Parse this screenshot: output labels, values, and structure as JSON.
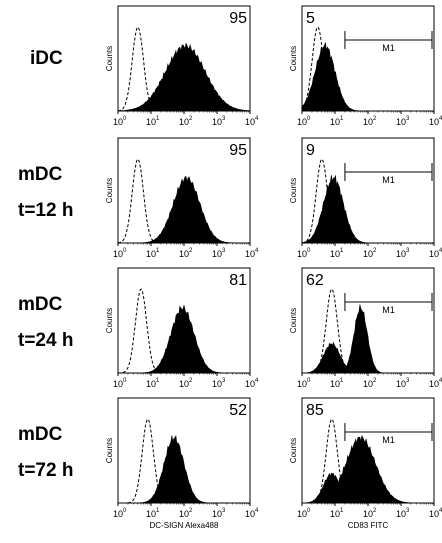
{
  "rows": [
    {
      "label": "iDC",
      "label2": ""
    },
    {
      "label": "mDC",
      "label2": "t=12 h"
    },
    {
      "label": "mDC",
      "label2": "t=24 h"
    },
    {
      "label": "mDC",
      "label2": "t=72 h"
    }
  ],
  "chart_data": {
    "type": "histogram",
    "x_scale": "log",
    "x_range": [
      1,
      10000
    ],
    "x_ticks": [
      "10",
      "10",
      "10",
      "10",
      "10"
    ],
    "x_tick_exponents": [
      "0",
      "1",
      "2",
      "3",
      "4"
    ],
    "y_label": "Counts",
    "x_labels": {
      "left": "DC-SIGN Alexa488",
      "right": "CD83 FITC"
    },
    "gate_label": "M1",
    "gate_range": [
      20,
      10000
    ],
    "panels": [
      {
        "row": 0,
        "col": 0,
        "value": "95",
        "isotype_peak": 4,
        "stain_peak": 110,
        "stain_width": 0.6,
        "gate": false
      },
      {
        "row": 0,
        "col": 1,
        "value": "5",
        "isotype_peak": 3,
        "stain_peak": 5,
        "stain_width": 0.3,
        "gate": true
      },
      {
        "row": 1,
        "col": 0,
        "value": "95",
        "isotype_peak": 4,
        "stain_peak": 120,
        "stain_width": 0.4,
        "gate": false
      },
      {
        "row": 1,
        "col": 1,
        "value": "9",
        "isotype_peak": 4,
        "stain_peak": 9,
        "stain_width": 0.3,
        "gate": true
      },
      {
        "row": 2,
        "col": 0,
        "value": "81",
        "isotype_peak": 5,
        "stain_peak": 90,
        "stain_width": 0.35,
        "gate": false
      },
      {
        "row": 2,
        "col": 1,
        "value": "62",
        "isotype_peak": 8,
        "stain_peak": 60,
        "stain_width": 0.2,
        "gate": true
      },
      {
        "row": 3,
        "col": 0,
        "value": "52",
        "isotype_peak": 8,
        "stain_peak": 50,
        "stain_width": 0.3,
        "gate": false
      },
      {
        "row": 3,
        "col": 1,
        "value": "85",
        "isotype_peak": 8,
        "stain_peak": 60,
        "stain_width": 0.45,
        "gate": true
      }
    ]
  }
}
